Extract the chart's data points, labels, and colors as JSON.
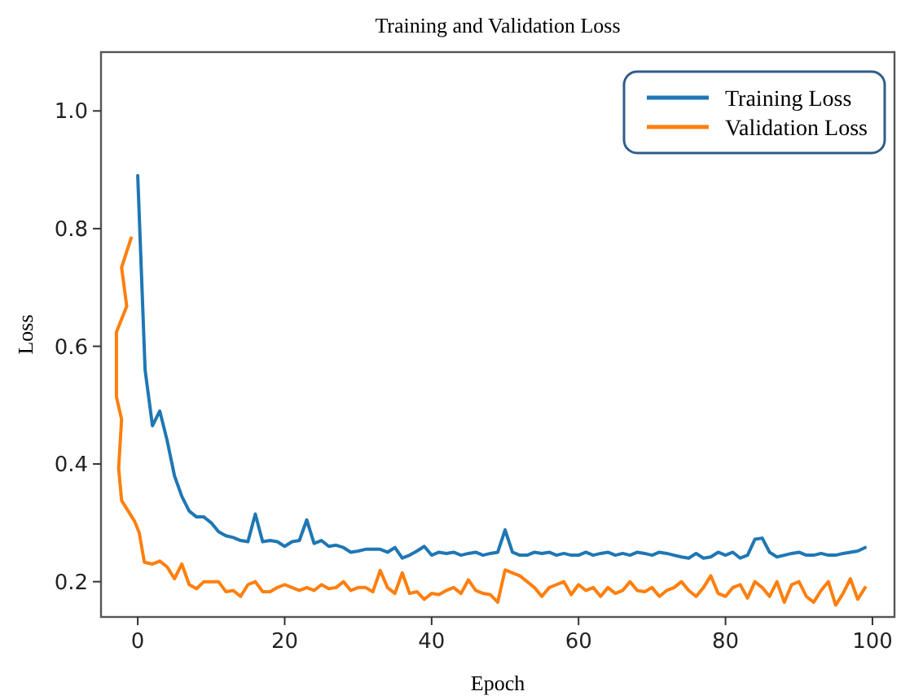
{
  "chart_data": {
    "type": "line",
    "title": "Training and Validation Loss",
    "xlabel": "Epoch",
    "ylabel": "Loss",
    "xlim": [
      -5,
      103
    ],
    "ylim": [
      0.14,
      1.1
    ],
    "xticks": [
      0,
      20,
      40,
      60,
      80,
      100
    ],
    "yticks": [
      {
        "value": 0.2,
        "label": "0.2"
      },
      {
        "value": 0.4,
        "label": "0.4"
      },
      {
        "value": 0.6,
        "label": "0.6"
      },
      {
        "value": 0.8,
        "label": "0.8"
      },
      {
        "value": 1.0,
        "label": "1.0"
      }
    ],
    "legend": "top right",
    "grid": false,
    "series": [
      {
        "name": "Training Loss",
        "color": "#1f77b4",
        "x": [
          0,
          1,
          2,
          3,
          4,
          5,
          6,
          7,
          8,
          9,
          10,
          11,
          12,
          13,
          14,
          15,
          16,
          17,
          18,
          19,
          20,
          21,
          22,
          23,
          24,
          25,
          26,
          27,
          28,
          29,
          30,
          31,
          32,
          33,
          34,
          35,
          36,
          37,
          38,
          39,
          40,
          41,
          42,
          43,
          44,
          45,
          46,
          47,
          48,
          49,
          50,
          51,
          52,
          53,
          54,
          55,
          56,
          57,
          58,
          59,
          60,
          61,
          62,
          63,
          64,
          65,
          66,
          67,
          68,
          69,
          70,
          71,
          72,
          73,
          74,
          75,
          76,
          77,
          78,
          79,
          80,
          81,
          82,
          83,
          84,
          85,
          86,
          87,
          88,
          89,
          90,
          91,
          92,
          93,
          94,
          95,
          96,
          97,
          98,
          99
        ],
        "values": [
          0.89,
          0.56,
          0.465,
          0.49,
          0.44,
          0.38,
          0.345,
          0.32,
          0.31,
          0.31,
          0.3,
          0.285,
          0.278,
          0.275,
          0.27,
          0.268,
          0.315,
          0.268,
          0.27,
          0.268,
          0.26,
          0.268,
          0.27,
          0.305,
          0.265,
          0.27,
          0.26,
          0.262,
          0.258,
          0.25,
          0.252,
          0.255,
          0.255,
          0.255,
          0.25,
          0.258,
          0.24,
          0.245,
          0.252,
          0.26,
          0.245,
          0.25,
          0.248,
          0.25,
          0.245,
          0.248,
          0.25,
          0.245,
          0.248,
          0.25,
          0.288,
          0.25,
          0.245,
          0.245,
          0.25,
          0.248,
          0.25,
          0.245,
          0.248,
          0.245,
          0.245,
          0.25,
          0.245,
          0.248,
          0.25,
          0.245,
          0.248,
          0.245,
          0.25,
          0.248,
          0.245,
          0.25,
          0.248,
          0.245,
          0.242,
          0.24,
          0.248,
          0.24,
          0.242,
          0.25,
          0.245,
          0.25,
          0.24,
          0.245,
          0.272,
          0.274,
          0.25,
          0.242,
          0.245,
          0.248,
          0.25,
          0.245,
          0.245,
          0.248,
          0.245,
          0.245,
          0.248,
          0.25,
          0.252,
          0.258
        ]
      },
      {
        "name": "Validation Loss",
        "color": "#ff7f0e",
        "x": [
          -0.9,
          -2.2,
          -1.5,
          -2.9,
          -2.9,
          -2.2,
          -2.6,
          -2.2,
          -0.4,
          0.2,
          0.9,
          2,
          3,
          4,
          5,
          6,
          7,
          8,
          9,
          10,
          11,
          12,
          13,
          14,
          15,
          16,
          17,
          18,
          19,
          20,
          21,
          22,
          23,
          24,
          25,
          26,
          27,
          28,
          29,
          30,
          31,
          32,
          33,
          34,
          35,
          36,
          37,
          38,
          39,
          40,
          41,
          42,
          43,
          44,
          45,
          46,
          47,
          48,
          49,
          50,
          51,
          52,
          53,
          54,
          55,
          56,
          57,
          58,
          59,
          60,
          61,
          62,
          63,
          64,
          65,
          66,
          67,
          68,
          69,
          70,
          71,
          72,
          73,
          74,
          75,
          76,
          77,
          78,
          79,
          80,
          81,
          82,
          83,
          84,
          85,
          86,
          87,
          88,
          89,
          90,
          91,
          92,
          93,
          94,
          95,
          96,
          97,
          98,
          99
        ],
        "values": [
          0.784,
          0.734,
          0.668,
          0.624,
          0.514,
          0.476,
          0.393,
          0.338,
          0.302,
          0.283,
          0.233,
          0.23,
          0.235,
          0.225,
          0.205,
          0.23,
          0.195,
          0.188,
          0.2,
          0.2,
          0.2,
          0.183,
          0.185,
          0.175,
          0.195,
          0.2,
          0.183,
          0.183,
          0.19,
          0.195,
          0.19,
          0.185,
          0.19,
          0.185,
          0.195,
          0.188,
          0.19,
          0.2,
          0.185,
          0.19,
          0.19,
          0.183,
          0.219,
          0.19,
          0.18,
          0.215,
          0.18,
          0.183,
          0.17,
          0.18,
          0.178,
          0.185,
          0.19,
          0.18,
          0.203,
          0.185,
          0.18,
          0.178,
          0.165,
          0.22,
          0.215,
          0.21,
          0.2,
          0.19,
          0.175,
          0.19,
          0.195,
          0.2,
          0.178,
          0.195,
          0.185,
          0.19,
          0.175,
          0.19,
          0.18,
          0.185,
          0.2,
          0.185,
          0.183,
          0.19,
          0.175,
          0.185,
          0.19,
          0.2,
          0.185,
          0.175,
          0.19,
          0.21,
          0.18,
          0.175,
          0.19,
          0.195,
          0.172,
          0.2,
          0.19,
          0.175,
          0.2,
          0.165,
          0.195,
          0.2,
          0.175,
          0.165,
          0.185,
          0.2,
          0.16,
          0.18,
          0.205,
          0.17,
          0.19
        ]
      }
    ]
  }
}
